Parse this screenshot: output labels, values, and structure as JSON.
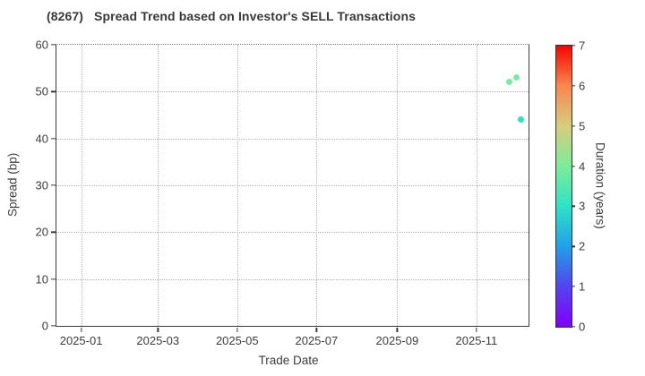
{
  "figure": {
    "title": "(8267)   Spread Trend based on Investor's SELL Transactions"
  },
  "chart_data": {
    "type": "scatter",
    "title": "(8267)   Spread Trend based on Investor's SELL Transactions",
    "xlabel": "Trade Date",
    "ylabel": "Spread (bp)",
    "xlim": [
      "2024-12-13",
      "2025-12-11"
    ],
    "ylim": [
      0,
      60
    ],
    "y_ticks": [
      0,
      10,
      20,
      30,
      40,
      50,
      60
    ],
    "x_ticks": [
      {
        "label": "2025-01",
        "date": "2025-01-01"
      },
      {
        "label": "2025-03",
        "date": "2025-03-01"
      },
      {
        "label": "2025-05",
        "date": "2025-05-01"
      },
      {
        "label": "2025-07",
        "date": "2025-07-01"
      },
      {
        "label": "2025-09",
        "date": "2025-09-01"
      },
      {
        "label": "2025-11",
        "date": "2025-11-01"
      }
    ],
    "grid": true,
    "grid_style": "dotted",
    "legend_position": "none",
    "points": [
      {
        "date": "2025-11-26",
        "spread_bp": 52,
        "duration_years": 3.8,
        "color": "#77eca0"
      },
      {
        "date": "2025-12-02",
        "spread_bp": 53,
        "duration_years": 3.8,
        "color": "#77eca0"
      },
      {
        "date": "2025-12-05",
        "spread_bp": 44,
        "duration_years": 2.9,
        "color": "#2edfc8"
      }
    ],
    "colorbar": {
      "label": "Duration (years)",
      "min": 0,
      "max": 7,
      "ticks": [
        0,
        1,
        2,
        3,
        4,
        5,
        6,
        7
      ],
      "colormap": "rainbow",
      "gradient_stops": [
        "#8100fb",
        "#5344f0",
        "#21a0e8",
        "#2ee3c5",
        "#7cec9a",
        "#d7cd7e",
        "#f8874e",
        "#f70400"
      ]
    }
  }
}
